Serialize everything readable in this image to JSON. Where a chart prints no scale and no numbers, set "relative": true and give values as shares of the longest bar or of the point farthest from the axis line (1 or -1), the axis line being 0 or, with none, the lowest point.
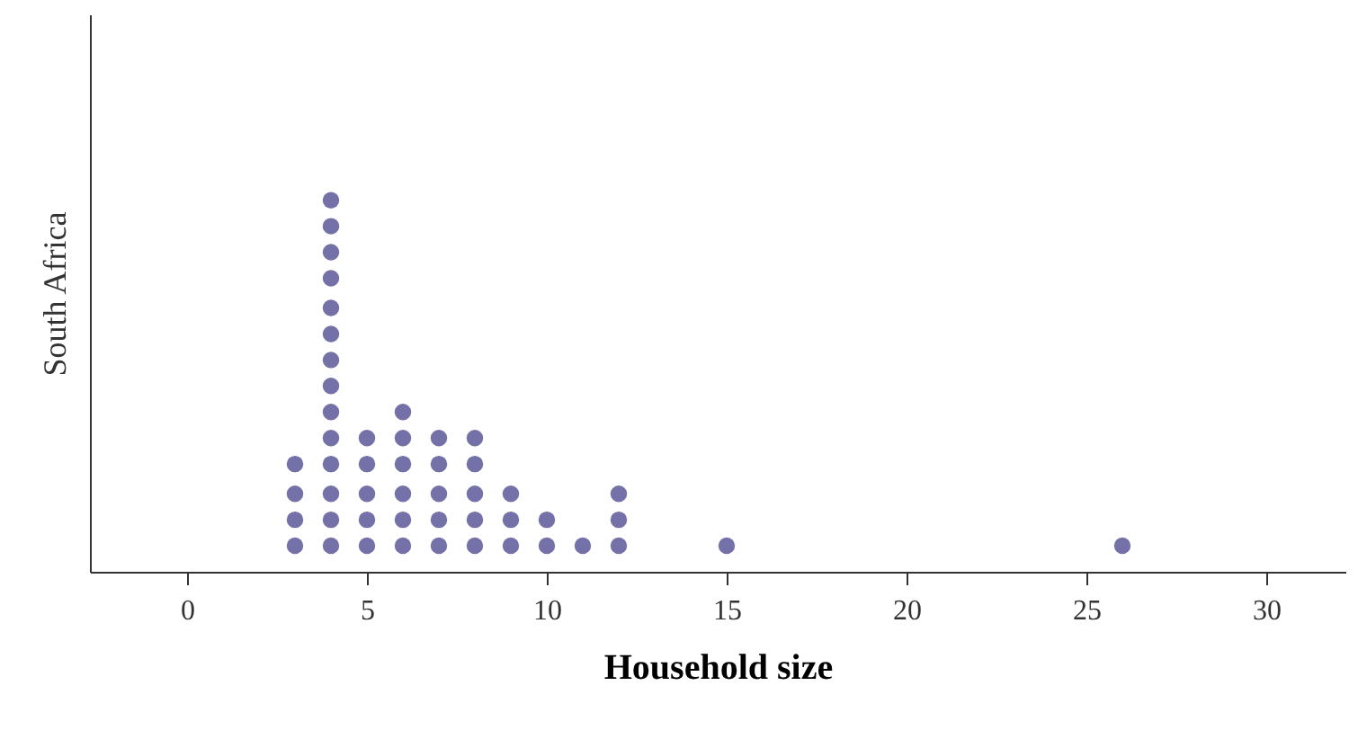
{
  "chart_data": {
    "type": "scatter",
    "xlabel": "Household size",
    "ylabel": "South Africa",
    "relative": true,
    "marker": "circle",
    "grid": false,
    "tick_labels": "x",
    "xlim": [
      -2.7,
      32.2
    ],
    "xticks": [
      0,
      5,
      10,
      15,
      20,
      25,
      30
    ],
    "x": [
      3,
      3,
      3,
      3,
      4,
      4,
      4,
      4,
      4,
      4,
      4,
      4,
      4,
      4,
      4,
      4,
      4,
      4,
      5,
      5,
      5,
      5,
      5,
      6,
      6,
      6,
      6,
      6,
      6,
      7,
      7,
      7,
      7,
      7,
      8,
      8,
      8,
      8,
      8,
      9,
      9,
      9,
      10,
      10,
      11,
      12,
      12,
      12,
      15,
      26
    ],
    "values": [
      0.07,
      0.14,
      0.21,
      0.29,
      0.07,
      0.14,
      0.21,
      0.29,
      0.36,
      0.43,
      0.5,
      0.57,
      0.64,
      0.71,
      0.79,
      0.86,
      0.93,
      1,
      0.07,
      0.14,
      0.21,
      0.29,
      0.36,
      0.07,
      0.14,
      0.21,
      0.29,
      0.36,
      0.43,
      0.07,
      0.14,
      0.21,
      0.29,
      0.36,
      0.07,
      0.14,
      0.21,
      0.29,
      0.36,
      0.07,
      0.14,
      0.21,
      0.07,
      0.14,
      0.07,
      0.07,
      0.14,
      0.21,
      0.07,
      0.07
    ],
    "color": "#7470a8"
  }
}
